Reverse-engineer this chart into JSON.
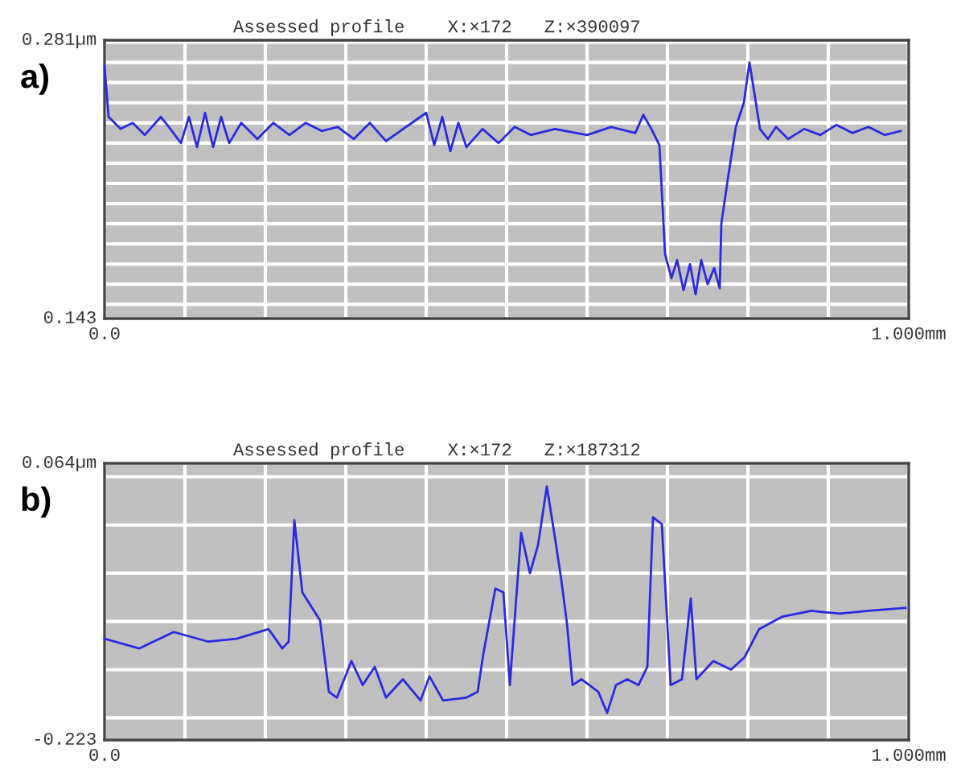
{
  "chart_data": [
    {
      "type": "line",
      "title": "Assessed profile    X:×172   Z:×390097",
      "annotations": [
        "a)"
      ],
      "series": [
        {
          "color": "#2a2ae0",
          "x": [
            0,
            0.005,
            0.02,
            0.035,
            0.05,
            0.07,
            0.08,
            0.095,
            0.105,
            0.115,
            0.125,
            0.135,
            0.145,
            0.155,
            0.17,
            0.19,
            0.21,
            0.23,
            0.25,
            0.27,
            0.29,
            0.31,
            0.33,
            0.35,
            0.4,
            0.41,
            0.42,
            0.43,
            0.44,
            0.45,
            0.47,
            0.49,
            0.51,
            0.53,
            0.56,
            0.6,
            0.63,
            0.66,
            0.67,
            0.68,
            0.69,
            0.697,
            0.705,
            0.712,
            0.72,
            0.728,
            0.735,
            0.742,
            0.75,
            0.758,
            0.765,
            0.767,
            0.775,
            0.785,
            0.795,
            0.802,
            0.81,
            0.815,
            0.825,
            0.835,
            0.85,
            0.87,
            0.89,
            0.91,
            0.93,
            0.95,
            0.97,
            0.99
          ],
          "values": [
            0.268,
            0.243,
            0.237,
            0.24,
            0.234,
            0.243,
            0.238,
            0.23,
            0.243,
            0.228,
            0.245,
            0.228,
            0.243,
            0.23,
            0.24,
            0.232,
            0.24,
            0.234,
            0.24,
            0.236,
            0.238,
            0.232,
            0.24,
            0.231,
            0.245,
            0.229,
            0.243,
            0.226,
            0.24,
            0.228,
            0.237,
            0.23,
            0.238,
            0.234,
            0.237,
            0.234,
            0.238,
            0.235,
            0.244,
            0.237,
            0.229,
            0.175,
            0.163,
            0.172,
            0.157,
            0.17,
            0.155,
            0.172,
            0.16,
            0.168,
            0.158,
            0.19,
            0.212,
            0.238,
            0.25,
            0.27,
            0.25,
            0.237,
            0.232,
            0.238,
            0.232,
            0.237,
            0.234,
            0.239,
            0.235,
            0.238,
            0.234,
            0.236
          ]
        }
      ],
      "xlim": [
        0,
        1.0
      ],
      "ylim": [
        0.143,
        0.281
      ],
      "xticks": [
        {
          "value": 0,
          "label": "0.0"
        },
        {
          "value": 0.1,
          "label": null
        },
        {
          "value": 0.2,
          "label": null
        },
        {
          "value": 0.3,
          "label": null
        },
        {
          "value": 0.4,
          "label": null
        },
        {
          "value": 0.5,
          "label": null
        },
        {
          "value": 0.6,
          "label": null
        },
        {
          "value": 0.7,
          "label": null
        },
        {
          "value": 0.8,
          "label": null
        },
        {
          "value": 0.9,
          "label": null
        },
        {
          "value": 1.0,
          "label": "1.000mm"
        }
      ],
      "yticks": [
        0.143,
        {
          "value": 0.15,
          "label": null
        },
        {
          "value": 0.16,
          "label": null
        },
        {
          "value": 0.17,
          "label": null
        },
        {
          "value": 0.18,
          "label": null
        },
        {
          "value": 0.19,
          "label": null
        },
        {
          "value": 0.2,
          "label": null
        },
        {
          "value": 0.21,
          "label": null
        },
        {
          "value": 0.22,
          "label": null
        },
        {
          "value": 0.23,
          "label": null
        },
        {
          "value": 0.24,
          "label": null
        },
        {
          "value": 0.25,
          "label": null
        },
        {
          "value": 0.26,
          "label": null
        },
        {
          "value": 0.27,
          "label": null
        },
        {
          "value": 0.28,
          "label": null
        },
        {
          "value": 0.281,
          "label": "0.281µm"
        }
      ],
      "grid": true,
      "legend": false,
      "marker": "none",
      "line_style": "solid"
    },
    {
      "type": "line",
      "title": "Assessed profile    X:×172   Z:×187312",
      "annotations": [
        "b)"
      ],
      "series": [
        {
          "color": "#2a2ae0",
          "x": [
            0,
            0.043,
            0.086,
            0.129,
            0.164,
            0.204,
            0.221,
            0.229,
            0.236,
            0.246,
            0.268,
            0.279,
            0.289,
            0.307,
            0.321,
            0.336,
            0.35,
            0.371,
            0.393,
            0.404,
            0.421,
            0.45,
            0.464,
            0.471,
            0.486,
            0.496,
            0.504,
            0.518,
            0.529,
            0.539,
            0.55,
            0.561,
            0.568,
            0.575,
            0.582,
            0.593,
            0.614,
            0.625,
            0.636,
            0.65,
            0.664,
            0.675,
            0.682,
            0.693,
            0.704,
            0.718,
            0.729,
            0.736,
            0.757,
            0.779,
            0.796,
            0.814,
            0.843,
            0.879,
            0.914,
            0.95,
            0.996
          ],
          "values": [
            -0.118,
            -0.128,
            -0.111,
            -0.121,
            -0.118,
            -0.108,
            -0.128,
            -0.121,
            0.005,
            -0.07,
            -0.099,
            -0.173,
            -0.179,
            -0.141,
            -0.166,
            -0.147,
            -0.179,
            -0.16,
            -0.182,
            -0.157,
            -0.182,
            -0.179,
            -0.173,
            -0.134,
            -0.066,
            -0.07,
            -0.166,
            -0.008,
            -0.05,
            -0.021,
            0.04,
            -0.018,
            -0.057,
            -0.102,
            -0.166,
            -0.16,
            -0.173,
            -0.195,
            -0.166,
            -0.16,
            -0.166,
            -0.147,
            0.008,
            0.001,
            -0.166,
            -0.16,
            -0.076,
            -0.16,
            -0.141,
            -0.15,
            -0.137,
            -0.108,
            -0.095,
            -0.089,
            -0.092,
            -0.089,
            -0.086
          ]
        }
      ],
      "xlim": [
        0,
        1.0
      ],
      "ylim": [
        -0.223,
        0.064
      ],
      "xticks": [
        {
          "value": 0,
          "label": "0.0"
        },
        {
          "value": 0.1,
          "label": null
        },
        {
          "value": 0.2,
          "label": null
        },
        {
          "value": 0.3,
          "label": null
        },
        {
          "value": 0.4,
          "label": null
        },
        {
          "value": 0.5,
          "label": null
        },
        {
          "value": 0.6,
          "label": null
        },
        {
          "value": 0.7,
          "label": null
        },
        {
          "value": 0.8,
          "label": null
        },
        {
          "value": 0.9,
          "label": null
        },
        {
          "value": 1.0,
          "label": "1.000mm"
        }
      ],
      "yticks": [
        -0.223,
        {
          "value": -0.2,
          "label": null
        },
        {
          "value": -0.15,
          "label": null
        },
        {
          "value": -0.1,
          "label": null
        },
        {
          "value": -0.05,
          "label": null
        },
        {
          "value": 0,
          "label": null
        },
        {
          "value": 0.05,
          "label": null
        },
        {
          "value": 0.064,
          "label": "0.064µm"
        }
      ],
      "grid": true,
      "legend": false,
      "marker": "none",
      "line_style": "solid"
    }
  ]
}
